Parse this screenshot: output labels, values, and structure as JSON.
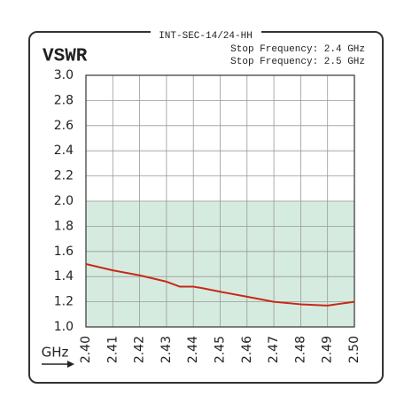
{
  "chart_data": {
    "type": "line",
    "title": "INT-SEC-14/24-HH",
    "ylabel": "VSWR",
    "xlabel": "GHz",
    "annotations": [
      "Stop Frequency: 2.4 GHz",
      "Stop Frequency: 2.5 GHz"
    ],
    "x": [
      2.4,
      2.41,
      2.42,
      2.43,
      2.435,
      2.44,
      2.443,
      2.45,
      2.46,
      2.47,
      2.48,
      2.49,
      2.5
    ],
    "series": [
      {
        "color": "#c62a1a",
        "values": [
          1.5,
          1.45,
          1.41,
          1.36,
          1.32,
          1.32,
          1.31,
          1.28,
          1.24,
          1.2,
          1.18,
          1.17,
          1.2
        ]
      }
    ],
    "xlim": [
      2.4,
      2.5
    ],
    "ylim": [
      1.0,
      3.0
    ],
    "xticks": [
      {
        "value": 2.4,
        "label": "2.40"
      },
      2.41,
      2.42,
      2.43,
      2.44,
      2.45,
      2.46,
      2.47,
      2.48,
      2.49,
      {
        "value": 2.5,
        "label": "2.50"
      }
    ],
    "yticks": [
      {
        "value": 1.0,
        "label": "1.0"
      },
      1.2,
      1.4,
      1.6,
      1.8,
      {
        "value": 2.0,
        "label": "2.0"
      },
      2.2,
      2.4,
      2.6,
      2.8,
      {
        "value": 3.0,
        "label": "3.0"
      }
    ],
    "grid": true,
    "shaded_band": {
      "from": 1.0,
      "to": 2.0,
      "color": "#d6ebdf"
    }
  }
}
